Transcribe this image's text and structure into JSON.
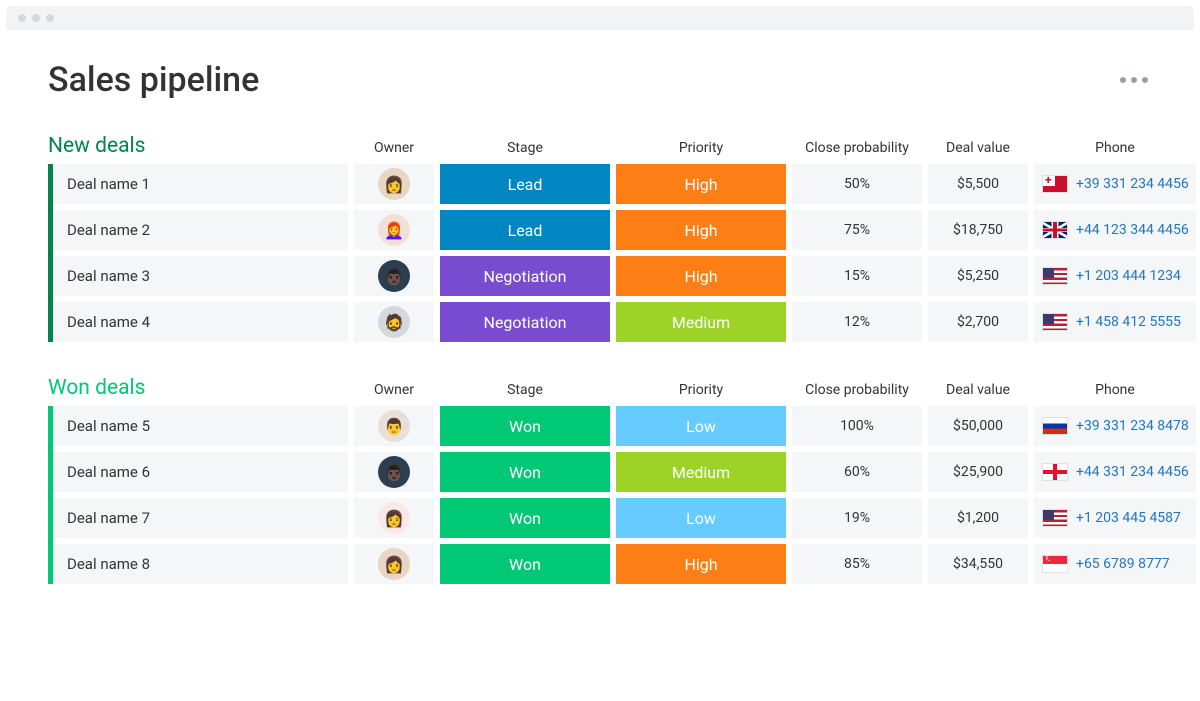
{
  "page": {
    "title": "Sales pipeline"
  },
  "columns": {
    "owner": "Owner",
    "stage": "Stage",
    "priority": "Priority",
    "close_probability": "Close probability",
    "deal_value": "Deal value",
    "phone": "Phone"
  },
  "stage_colors": {
    "Lead": "#0086c0",
    "Negotiation": "#784bd1",
    "Won": "#00c875"
  },
  "priority_colors": {
    "High": "#fd7e14",
    "Medium": "#9cd326",
    "Low": "#66ccff"
  },
  "ui_colors": {
    "cell_bg": "#f5f6f8",
    "phone_link": "#1f76c2",
    "kebab_dot": "#9aa0a6",
    "add_btn": "#9aa0a6"
  },
  "groups": [
    {
      "id": "new-deals",
      "title": "New deals",
      "title_color": "#00854d",
      "border_color": "#00854d",
      "rows": [
        {
          "deal_name": "Deal name 1",
          "owner_avatar": "av-a",
          "owner_emoji": "👩",
          "stage": "Lead",
          "priority": "High",
          "close_probability": "50%",
          "deal_value": "$5,500",
          "flag_class": "flag-tonga",
          "flag_name": "flag-tonga",
          "phone": "+39 331 234 4456"
        },
        {
          "deal_name": "Deal name 2",
          "owner_avatar": "av-b",
          "owner_emoji": "👩‍🦰",
          "stage": "Lead",
          "priority": "High",
          "close_probability": "75%",
          "deal_value": "$18,750",
          "flag_class": "flag-uk",
          "flag_name": "flag-uk",
          "phone": "+44 123 344 4456"
        },
        {
          "deal_name": "Deal name 3",
          "owner_avatar": "av-c",
          "owner_emoji": "👨🏿",
          "stage": "Negotiation",
          "priority": "High",
          "close_probability": "15%",
          "deal_value": "$5,250",
          "flag_class": "flag-us",
          "flag_name": "flag-us",
          "phone": "+1 203 444 1234"
        },
        {
          "deal_name": "Deal name 4",
          "owner_avatar": "av-d",
          "owner_emoji": "🧔",
          "stage": "Negotiation",
          "priority": "Medium",
          "close_probability": "12%",
          "deal_value": "$2,700",
          "flag_class": "flag-us",
          "flag_name": "flag-us",
          "phone": "+1 458 412 5555"
        }
      ]
    },
    {
      "id": "won-deals",
      "title": "Won deals",
      "title_color": "#00c875",
      "border_color": "#00c875",
      "rows": [
        {
          "deal_name": "Deal name 5",
          "owner_avatar": "av-e",
          "owner_emoji": "👨",
          "stage": "Won",
          "priority": "Low",
          "close_probability": "100%",
          "deal_value": "$50,000",
          "flag_class": "flag-ru",
          "flag_name": "flag-ru",
          "phone": "+39 331 234 8478"
        },
        {
          "deal_name": "Deal name 6",
          "owner_avatar": "av-c",
          "owner_emoji": "👨🏿",
          "stage": "Won",
          "priority": "Medium",
          "close_probability": "60%",
          "deal_value": "$25,900",
          "flag_class": "flag-gg",
          "flag_name": "flag-gg",
          "phone": "+44 331 234 4456"
        },
        {
          "deal_name": "Deal name 7",
          "owner_avatar": "av-f",
          "owner_emoji": "👩",
          "stage": "Won",
          "priority": "Low",
          "close_probability": "19%",
          "deal_value": "$1,200",
          "flag_class": "flag-us",
          "flag_name": "flag-us",
          "phone": "+1 203 445 4587"
        },
        {
          "deal_name": "Deal name 8",
          "owner_avatar": "av-a",
          "owner_emoji": "👩",
          "stage": "Won",
          "priority": "High",
          "close_probability": "85%",
          "deal_value": "$34,550",
          "flag_class": "flag-sg",
          "flag_name": "flag-sg",
          "phone": "+65 6789 8777"
        }
      ]
    }
  ]
}
